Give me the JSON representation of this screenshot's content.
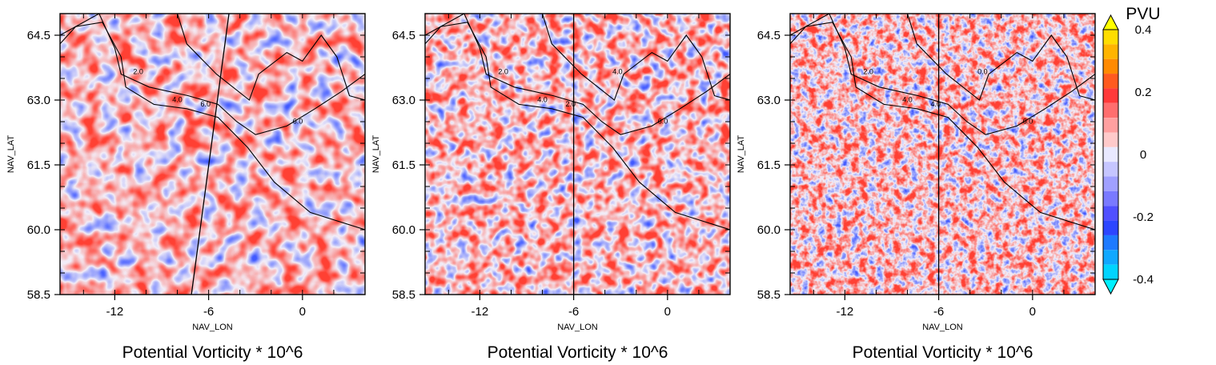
{
  "colorbar": {
    "unit_label": "PVU",
    "tick_labels": [
      "0.4",
      "0.2",
      "0",
      "-0.2",
      "-0.4"
    ],
    "colors": [
      "#ffff00",
      "#ffdd00",
      "#ffb400",
      "#ff8a00",
      "#ff5a1e",
      "#ff3a3a",
      "#ff6e6e",
      "#ffa0a0",
      "#ffcaca",
      "#e9e9ff",
      "#c6c6ff",
      "#a0a0ff",
      "#7a7aff",
      "#5050ff",
      "#2c46ff",
      "#1e7aff",
      "#10a8ff",
      "#00d4ff",
      "#00f0ff"
    ],
    "levels": [
      0.4,
      0.35,
      0.3,
      0.25,
      0.2,
      0.15,
      0.1,
      0.05,
      0.0,
      -0.05,
      -0.1,
      -0.15,
      -0.2,
      -0.25,
      -0.3,
      -0.35,
      -0.4
    ]
  },
  "chart_data": [
    {
      "type": "heatmap",
      "title": "Potential Vorticity * 10^6",
      "xlabel": "NAV_LON",
      "ylabel": "NAV_LAT",
      "x_range": [
        -15.5,
        4.0
      ],
      "y_range": [
        58.5,
        65.0
      ],
      "x_ticks": [
        -12,
        -6,
        0
      ],
      "x_tick_labels": [
        "-12",
        "-6",
        "0"
      ],
      "y_ticks": [
        58.5,
        60.0,
        61.5,
        63.0,
        64.5
      ],
      "y_tick_labels": [
        "58.5",
        "60.0",
        "61.5",
        "63.0",
        "64.5"
      ],
      "field_range": [
        -0.4,
        0.4
      ],
      "contour_labels": [
        "2.0",
        "4.0",
        "6.0",
        "6.0"
      ],
      "section_line": [
        [
          -7.1,
          58.5
        ],
        [
          -4.7,
          65.0
        ]
      ]
    },
    {
      "type": "heatmap",
      "title": "Potential Vorticity * 10^6",
      "xlabel": "NAV_LON",
      "ylabel": "NAV_LAT",
      "x_range": [
        -15.5,
        4.0
      ],
      "y_range": [
        58.5,
        65.0
      ],
      "x_ticks": [
        -12,
        -6,
        0
      ],
      "x_tick_labels": [
        "-12",
        "-6",
        "0"
      ],
      "y_ticks": [
        58.5,
        60.0,
        61.5,
        63.0,
        64.5
      ],
      "y_tick_labels": [
        "58.5",
        "60.0",
        "61.5",
        "63.0",
        "64.5"
      ],
      "field_range": [
        -0.4,
        0.4
      ],
      "contour_labels": [
        "2.0",
        "4.0",
        "2.0",
        "6.0",
        "4.0"
      ],
      "section_line": [
        [
          -6.0,
          58.5
        ],
        [
          -6.0,
          65.0
        ]
      ]
    },
    {
      "type": "heatmap",
      "title": "Potential Vorticity * 10^6",
      "xlabel": "NAV_LON",
      "ylabel": "NAV_LAT",
      "x_range": [
        -15.5,
        4.0
      ],
      "y_range": [
        58.5,
        65.0
      ],
      "x_ticks": [
        -12,
        -6,
        0
      ],
      "x_tick_labels": [
        "-12",
        "-6",
        "0"
      ],
      "y_ticks": [
        58.5,
        60.0,
        61.5,
        63.0,
        64.5
      ],
      "y_tick_labels": [
        "58.5",
        "60.0",
        "61.5",
        "63.0",
        "64.5"
      ],
      "field_range": [
        -0.4,
        0.4
      ],
      "contour_labels": [
        "2.0",
        "4.0",
        "4.0",
        "6.0",
        "0.0"
      ],
      "section_line": [
        [
          -6.0,
          58.5
        ],
        [
          -6.0,
          65.0
        ]
      ]
    }
  ]
}
